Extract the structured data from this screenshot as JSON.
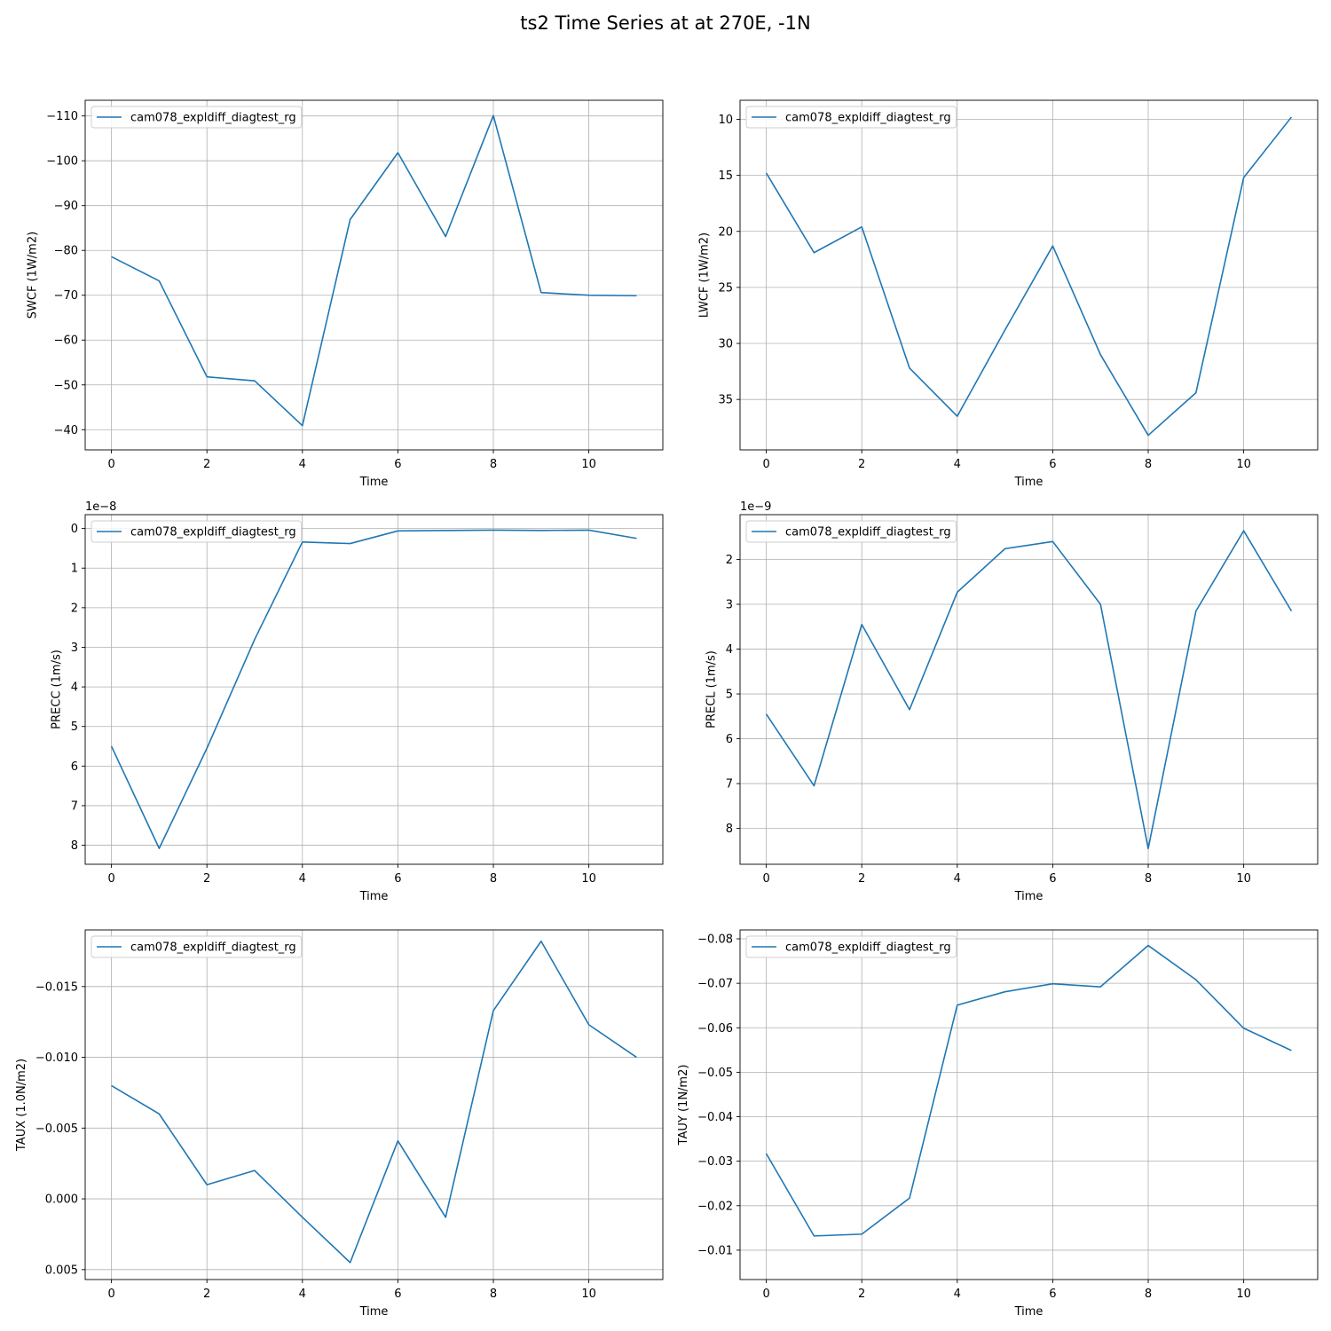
{
  "figure": {
    "title": "ts2 Time Series at at 270E, -1N"
  },
  "style": {
    "line_color": "#1f77b4",
    "grid_color": "#b0b0b0"
  },
  "chart_data": [
    {
      "type": "line",
      "xlabel": "Time",
      "ylabel": "SWCF (1W/m2)",
      "x": [
        0,
        1,
        2,
        3,
        4,
        5,
        6,
        7,
        8,
        9,
        10,
        11
      ],
      "xlim": [
        -0.55,
        11.55
      ],
      "ylim": [
        -35.5,
        -113.5
      ],
      "xticks": [
        0,
        2,
        4,
        6,
        8,
        10
      ],
      "xticklabels": [
        "0",
        "2",
        "4",
        "6",
        "8",
        "10"
      ],
      "yticks": [
        -40,
        -50,
        -60,
        -70,
        -80,
        -90,
        -100,
        -110
      ],
      "yticklabels": [
        "−40",
        "−50",
        "−60",
        "−70",
        "−80",
        "−90",
        "−100",
        "−110"
      ],
      "offset_text": "",
      "grid": true,
      "legend": "upper left",
      "series": [
        {
          "name": "cam078_expldiff_diagtest_rg",
          "values": [
            -78.6,
            -73.2,
            -51.8,
            -50.9,
            -40.9,
            -86.9,
            -101.8,
            -83.1,
            -110.1,
            -70.6,
            -70.0,
            -69.9
          ]
        }
      ]
    },
    {
      "type": "line",
      "xlabel": "Time",
      "ylabel": "LWCF (1W/m2)",
      "x": [
        0,
        1,
        2,
        3,
        4,
        5,
        6,
        7,
        8,
        9,
        10,
        11
      ],
      "xlim": [
        -0.55,
        11.55
      ],
      "ylim": [
        39.5,
        8.3
      ],
      "xticks": [
        0,
        2,
        4,
        6,
        8,
        10
      ],
      "xticklabels": [
        "0",
        "2",
        "4",
        "6",
        "8",
        "10"
      ],
      "yticks": [
        10,
        15,
        20,
        25,
        30,
        35
      ],
      "yticklabels": [
        "10",
        "15",
        "20",
        "25",
        "30",
        "35"
      ],
      "offset_text": "",
      "grid": true,
      "legend": "upper left",
      "series": [
        {
          "name": "cam078_expldiff_diagtest_rg",
          "values": [
            14.8,
            21.9,
            19.6,
            32.2,
            36.5,
            28.8,
            21.3,
            31.0,
            38.2,
            34.4,
            15.2,
            9.8
          ]
        }
      ]
    },
    {
      "type": "line",
      "xlabel": "Time",
      "ylabel": "PRECC (1m/s)",
      "x": [
        0,
        1,
        2,
        3,
        4,
        5,
        6,
        7,
        8,
        9,
        10,
        11
      ],
      "xlim": [
        -0.55,
        11.55
      ],
      "ylim": [
        8.48,
        -0.35
      ],
      "xticks": [
        0,
        2,
        4,
        6,
        8,
        10
      ],
      "xticklabels": [
        "0",
        "2",
        "4",
        "6",
        "8",
        "10"
      ],
      "yticks": [
        0,
        1,
        2,
        3,
        4,
        5,
        6,
        7,
        8
      ],
      "yticklabels": [
        "0",
        "1",
        "2",
        "3",
        "4",
        "5",
        "6",
        "7",
        "8"
      ],
      "offset_text": "1e−8",
      "grid": true,
      "legend": "upper left",
      "series": [
        {
          "name": "cam078_expldiff_diagtest_rg",
          "values": [
            5.5,
            8.08,
            5.55,
            2.8,
            0.34,
            0.38,
            0.06,
            0.05,
            0.04,
            0.05,
            0.04,
            0.25
          ]
        }
      ]
    },
    {
      "type": "line",
      "xlabel": "Time",
      "ylabel": "PRECL (1m/s)",
      "x": [
        0,
        1,
        2,
        3,
        4,
        5,
        6,
        7,
        8,
        9,
        10,
        11
      ],
      "xlim": [
        -0.55,
        11.55
      ],
      "ylim": [
        8.8,
        1.0
      ],
      "xticks": [
        0,
        2,
        4,
        6,
        8,
        10
      ],
      "xticklabels": [
        "0",
        "2",
        "4",
        "6",
        "8",
        "10"
      ],
      "yticks": [
        2,
        3,
        4,
        5,
        6,
        7,
        8
      ],
      "yticklabels": [
        "2",
        "3",
        "4",
        "5",
        "6",
        "7",
        "8"
      ],
      "offset_text": "1e−9",
      "grid": true,
      "legend": "upper left",
      "series": [
        {
          "name": "cam078_expldiff_diagtest_rg",
          "values": [
            5.45,
            7.05,
            3.45,
            5.35,
            2.73,
            1.76,
            1.6,
            3.0,
            8.45,
            3.15,
            1.36,
            3.15
          ]
        }
      ]
    },
    {
      "type": "line",
      "xlabel": "Time",
      "ylabel": "TAUX (1.0N/m2)",
      "x": [
        0,
        1,
        2,
        3,
        4,
        5,
        6,
        7,
        8,
        9,
        10,
        11
      ],
      "xlim": [
        -0.55,
        11.55
      ],
      "ylim": [
        0.0057,
        -0.019
      ],
      "xticks": [
        0,
        2,
        4,
        6,
        8,
        10
      ],
      "xticklabels": [
        "0",
        "2",
        "4",
        "6",
        "8",
        "10"
      ],
      "yticks": [
        0.005,
        0.0,
        -0.005,
        -0.01,
        -0.015
      ],
      "yticklabels": [
        "0.005",
        "0.000",
        "−0.005",
        "−0.010",
        "−0.015"
      ],
      "offset_text": "",
      "grid": true,
      "legend": "upper left",
      "series": [
        {
          "name": "cam078_expldiff_diagtest_rg",
          "values": [
            -0.008,
            -0.006,
            -0.001,
            -0.002,
            0.0013,
            0.0045,
            -0.0041,
            0.0013,
            -0.0133,
            -0.0182,
            -0.0123,
            -0.01
          ]
        }
      ]
    },
    {
      "type": "line",
      "xlabel": "Time",
      "ylabel": "TAUY (1N/m2)",
      "x": [
        0,
        1,
        2,
        3,
        4,
        5,
        6,
        7,
        8,
        9,
        10,
        11
      ],
      "xlim": [
        -0.55,
        11.55
      ],
      "ylim": [
        -0.0034,
        -0.082
      ],
      "xticks": [
        0,
        2,
        4,
        6,
        8,
        10
      ],
      "xticklabels": [
        "0",
        "2",
        "4",
        "6",
        "8",
        "10"
      ],
      "yticks": [
        -0.01,
        -0.02,
        -0.03,
        -0.04,
        -0.05,
        -0.06,
        -0.07,
        -0.08
      ],
      "yticklabels": [
        "−0.01",
        "−0.02",
        "−0.03",
        "−0.04",
        "−0.05",
        "−0.06",
        "−0.07",
        "−0.08"
      ],
      "offset_text": "",
      "grid": true,
      "legend": "upper left",
      "series": [
        {
          "name": "cam078_expldiff_diagtest_rg",
          "values": [
            -0.0317,
            -0.0132,
            -0.0136,
            -0.0217,
            -0.0651,
            -0.0681,
            -0.0699,
            -0.0692,
            -0.0785,
            -0.0708,
            -0.0599,
            -0.0549
          ]
        }
      ]
    }
  ]
}
